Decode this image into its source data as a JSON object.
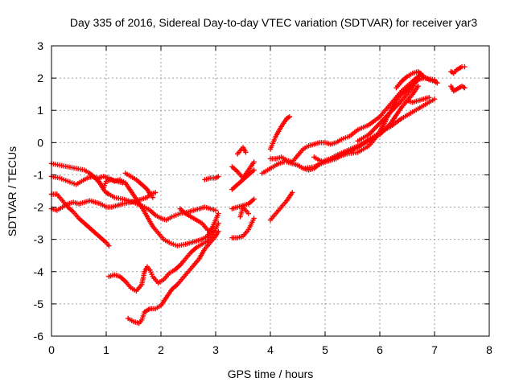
{
  "chart_data": {
    "type": "scatter",
    "title": "Day 335 of 2016, Sidereal Day-to-day VTEC variation (SDTVAR) for receiver yar3",
    "xlabel": "GPS time / hours",
    "ylabel": "SDTVAR / TECUs",
    "xlim": [
      0,
      8
    ],
    "ylim": [
      -6,
      3
    ],
    "xticks": [
      "0",
      "1",
      "2",
      "3",
      "4",
      "5",
      "6",
      "7",
      "8"
    ],
    "yticks": [
      "-6",
      "-5",
      "-4",
      "-3",
      "-2",
      "-1",
      "0",
      "1",
      "2",
      "3"
    ],
    "grid": true,
    "marker": "plus",
    "color": "#ff0000",
    "series": [
      {
        "x": [
          0.0,
          0.15,
          0.3,
          0.45,
          0.6,
          0.7,
          0.8,
          0.9,
          0.95,
          1.0,
          1.05,
          1.15,
          1.3,
          1.5,
          1.7,
          1.8,
          1.9,
          2.0,
          2.1,
          2.2,
          2.35,
          2.5,
          2.6,
          2.7,
          2.8,
          2.9,
          3.0
        ],
        "y": [
          -0.65,
          -0.7,
          -0.75,
          -0.8,
          -0.85,
          -0.95,
          -1.1,
          -1.3,
          -1.45,
          -1.55,
          -1.6,
          -1.7,
          -1.75,
          -1.85,
          -2.0,
          -2.1,
          -2.25,
          -2.35,
          -2.4,
          -2.3,
          -2.2,
          -2.15,
          -2.1,
          -2.05,
          -2.0,
          -2.05,
          -2.1
        ]
      },
      {
        "x": [
          0.0,
          0.1,
          0.2,
          0.3,
          0.4,
          0.5,
          0.6,
          0.7,
          0.8,
          0.9,
          1.0,
          1.05
        ],
        "y": [
          -1.6,
          -1.6,
          -1.8,
          -2.0,
          -2.15,
          -2.35,
          -2.5,
          -2.65,
          -2.8,
          -2.95,
          -3.1,
          -3.2
        ]
      },
      {
        "x": [
          0.0,
          0.1,
          0.2,
          0.3,
          0.4,
          0.5,
          0.6,
          0.7,
          0.8,
          0.9,
          1.0,
          1.1,
          1.2,
          1.3,
          1.45,
          1.55,
          1.65,
          1.75,
          1.8,
          1.9
        ],
        "y": [
          -2.05,
          -2.1,
          -2.0,
          -1.9,
          -1.85,
          -1.9,
          -1.85,
          -1.8,
          -1.85,
          -1.9,
          -2.0,
          -2.0,
          -1.95,
          -1.9,
          -1.85,
          -1.8,
          -1.75,
          -1.7,
          -1.6,
          -1.55
        ]
      },
      {
        "x": [
          0.0,
          0.15,
          0.3,
          0.45,
          0.55,
          0.65,
          0.75,
          0.85,
          0.95,
          1.05,
          1.15,
          1.25,
          1.35,
          1.45,
          1.55,
          1.65,
          1.75,
          1.85,
          1.95,
          2.05,
          2.15,
          2.3,
          2.45,
          2.55,
          2.65,
          2.75,
          2.85,
          2.95,
          3.05
        ],
        "y": [
          -1.05,
          -1.1,
          -1.2,
          -1.3,
          -1.2,
          -1.1,
          -1.05,
          -1.1,
          -1.05,
          -1.1,
          -1.2,
          -1.15,
          -1.25,
          -1.5,
          -1.75,
          -2.0,
          -2.3,
          -2.6,
          -2.8,
          -3.0,
          -3.1,
          -3.2,
          -3.15,
          -3.1,
          -3.05,
          -3.0,
          -2.9,
          -2.6,
          -2.2
        ]
      },
      {
        "x": [
          0.75,
          0.85,
          0.9,
          0.95,
          1.0,
          1.1,
          1.2,
          1.3
        ],
        "y": [
          -1.05,
          -1.15,
          -1.3,
          -1.4,
          -1.2,
          -1.15,
          -1.2,
          -1.25
        ]
      },
      {
        "x": [
          1.35,
          1.45,
          1.55,
          1.65,
          1.75,
          1.8,
          1.85
        ],
        "y": [
          -0.95,
          -1.05,
          -1.15,
          -1.3,
          -1.45,
          -1.6,
          -1.7
        ]
      },
      {
        "x": [
          1.05,
          1.15,
          1.25,
          1.35,
          1.45,
          1.55,
          1.65,
          1.7,
          1.75,
          1.8,
          1.85,
          1.95,
          2.05,
          2.15,
          2.25,
          2.35,
          2.45,
          2.55,
          2.65,
          2.75,
          2.85,
          2.95,
          3.05
        ],
        "y": [
          -4.15,
          -4.1,
          -4.15,
          -4.3,
          -4.5,
          -4.6,
          -4.4,
          -4.0,
          -3.85,
          -3.95,
          -4.15,
          -4.35,
          -4.25,
          -4.05,
          -3.95,
          -3.8,
          -3.6,
          -3.4,
          -3.25,
          -3.15,
          -3.05,
          -2.85,
          -2.5
        ]
      },
      {
        "x": [
          1.4,
          1.5,
          1.6,
          1.65,
          1.7,
          1.75,
          1.8,
          1.9,
          2.0,
          2.1,
          2.2,
          2.3,
          2.4,
          2.5,
          2.6,
          2.7,
          2.8,
          2.9,
          3.0,
          3.05
        ],
        "y": [
          -5.45,
          -5.55,
          -5.6,
          -5.5,
          -5.25,
          -5.2,
          -5.15,
          -5.15,
          -5.05,
          -4.8,
          -4.55,
          -4.4,
          -4.2,
          -4.0,
          -3.8,
          -3.6,
          -3.3,
          -3.1,
          -2.9,
          -2.75
        ]
      },
      {
        "x": [
          2.35,
          2.45,
          2.6,
          2.75,
          2.85,
          2.95
        ],
        "y": [
          -2.05,
          -2.2,
          -2.35,
          -2.5,
          -2.7,
          -2.8
        ]
      },
      {
        "x": [
          2.8,
          2.9,
          3.0,
          3.05
        ],
        "y": [
          -1.15,
          -1.1,
          -1.1,
          -1.05
        ]
      },
      {
        "x": [
          3.3,
          3.4,
          3.5,
          3.6,
          3.7
        ],
        "y": [
          -0.75,
          -0.9,
          -1.1,
          -0.85,
          -0.6
        ]
      },
      {
        "x": [
          3.4,
          3.45,
          3.5,
          3.55
        ],
        "y": [
          -0.35,
          -0.25,
          -0.15,
          -0.3
        ]
      },
      {
        "x": [
          3.3,
          3.4,
          3.5,
          3.6,
          3.7
        ],
        "y": [
          -1.45,
          -1.3,
          -1.15,
          -1.0,
          -0.85
        ]
      },
      {
        "x": [
          3.3,
          3.4,
          3.5,
          3.6,
          3.7
        ],
        "y": [
          -2.05,
          -2.0,
          -1.95,
          -1.9,
          -1.75
        ]
      },
      {
        "x": [
          3.3,
          3.4,
          3.5,
          3.6,
          3.7
        ],
        "y": [
          -2.95,
          -2.95,
          -2.9,
          -2.7,
          -2.35
        ]
      },
      {
        "x": [
          3.45,
          3.5,
          3.55,
          3.6
        ],
        "y": [
          -2.3,
          -2.0,
          -2.1,
          -2.2
        ]
      },
      {
        "x": [
          4.0,
          4.1,
          4.2,
          4.3,
          4.35
        ],
        "y": [
          -0.2,
          0.2,
          0.5,
          0.75,
          0.8
        ]
      },
      {
        "x": [
          4.0,
          4.1,
          4.2,
          4.3,
          4.4
        ],
        "y": [
          -2.4,
          -2.2,
          -2.0,
          -1.8,
          -1.55
        ]
      },
      {
        "x": [
          3.85,
          3.95,
          4.05,
          4.15,
          4.25
        ],
        "y": [
          -0.95,
          -0.85,
          -0.75,
          -0.65,
          -0.6
        ]
      },
      {
        "x": [
          4.0,
          4.1,
          4.2,
          4.3,
          4.4,
          4.5,
          4.6,
          4.7,
          4.8,
          4.9,
          5.0,
          5.1,
          5.2,
          5.3,
          5.45,
          5.6,
          5.8,
          6.0,
          6.2,
          6.4,
          6.6,
          6.7
        ],
        "y": [
          -0.5,
          -0.5,
          -0.45,
          -0.55,
          -0.6,
          -0.4,
          -0.2,
          -0.1,
          -0.05,
          0.0,
          0.0,
          -0.05,
          0.0,
          0.1,
          0.2,
          0.4,
          0.55,
          0.8,
          1.2,
          1.6,
          1.9,
          2.05
        ]
      },
      {
        "x": [
          4.3,
          4.4,
          4.5,
          4.6,
          4.7,
          4.8,
          4.9,
          5.0,
          5.1,
          5.2,
          5.4,
          5.6,
          5.8,
          5.9,
          6.0,
          6.1,
          6.2,
          6.3,
          6.4,
          6.5,
          6.6,
          6.7,
          6.8,
          7.0
        ],
        "y": [
          -0.6,
          -0.65,
          -0.7,
          -0.8,
          -0.85,
          -0.8,
          -0.65,
          -0.55,
          -0.5,
          -0.45,
          -0.35,
          -0.3,
          -0.1,
          0.1,
          0.35,
          0.65,
          1.0,
          1.3,
          1.5,
          1.65,
          1.8,
          1.95,
          2.0,
          1.95
        ]
      },
      {
        "x": [
          4.8,
          4.9,
          5.0,
          5.2,
          5.4,
          5.6,
          5.8,
          6.0,
          6.2,
          6.4,
          6.6,
          6.7
        ],
        "y": [
          -0.45,
          -0.55,
          -0.6,
          -0.4,
          -0.25,
          -0.1,
          0.05,
          0.25,
          0.6,
          1.1,
          1.5,
          1.75
        ]
      },
      {
        "x": [
          4.6,
          4.8,
          5.0,
          5.2,
          5.4,
          5.6,
          5.8,
          6.0,
          6.2,
          6.4,
          6.6,
          6.8,
          7.0
        ],
        "y": [
          -0.8,
          -0.75,
          -0.6,
          -0.5,
          -0.3,
          -0.15,
          0.1,
          0.3,
          0.5,
          0.75,
          0.95,
          1.15,
          1.35
        ]
      },
      {
        "x": [
          5.6,
          5.8,
          6.0,
          6.2,
          6.4,
          6.6,
          6.75
        ],
        "y": [
          0.05,
          0.25,
          0.6,
          0.95,
          1.3,
          1.7,
          2.15
        ]
      },
      {
        "x": [
          6.3,
          6.4,
          6.5,
          6.6,
          6.7,
          6.8,
          6.9,
          7.0,
          7.05
        ],
        "y": [
          1.7,
          1.9,
          2.05,
          2.15,
          2.2,
          2.05,
          1.95,
          1.9,
          1.85
        ]
      },
      {
        "x": [
          6.5,
          6.6,
          6.7,
          6.8,
          6.9
        ],
        "y": [
          1.3,
          1.25,
          1.3,
          1.35,
          1.4
        ]
      },
      {
        "x": [
          7.3,
          7.35,
          7.4,
          7.45,
          7.5,
          7.55
        ],
        "y": [
          1.75,
          1.6,
          1.65,
          1.7,
          1.75,
          1.7
        ]
      },
      {
        "x": [
          7.3,
          7.35,
          7.4,
          7.45,
          7.5,
          7.55
        ],
        "y": [
          2.2,
          2.15,
          2.25,
          2.3,
          2.35,
          2.35
        ]
      }
    ]
  }
}
